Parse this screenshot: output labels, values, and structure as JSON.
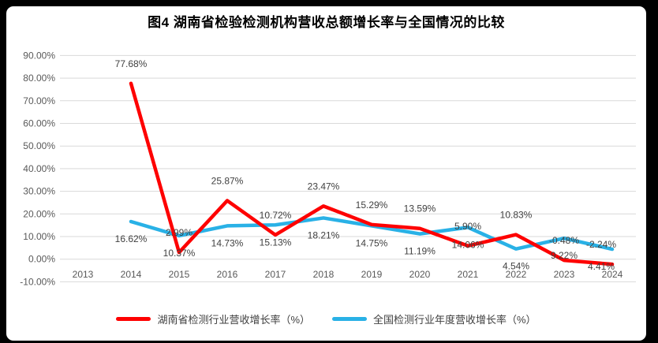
{
  "figure": {
    "title": "图4 湖南省检验检测机构营收总额增长率与全国情况的比较"
  },
  "chart_data": {
    "type": "line",
    "title": "图4 湖南省检验检测机构营收总额增长率与全国情况的比较",
    "categories": [
      "2013",
      "2014",
      "2015",
      "2016",
      "2017",
      "2018",
      "2019",
      "2020",
      "2021",
      "2022",
      "2023",
      "2024"
    ],
    "series": [
      {
        "name": "湖南省检测行业营收增长率（%）",
        "color": "#fe0000",
        "label_position": "above",
        "values": [
          null,
          77.68,
          2.99,
          25.87,
          10.72,
          23.47,
          15.29,
          13.59,
          5.9,
          10.83,
          -0.48,
          -2.24
        ],
        "labels": [
          "",
          "77.68%",
          "2.99%",
          "25.87%",
          "10.72%",
          "23.47%",
          "15.29%",
          "13.59%",
          "5.90%",
          "10.83%",
          "-0.48%",
          "-2.24%"
        ]
      },
      {
        "name": "全国检测行业年度营收增长率（%）",
        "color": "#29b1e6",
        "label_position": "below",
        "values": [
          null,
          16.62,
          10.37,
          14.73,
          15.13,
          18.21,
          14.75,
          11.19,
          14.06,
          4.54,
          9.22,
          4.41
        ],
        "labels": [
          "",
          "16.62%",
          "10.37%",
          "14.73%",
          "15.13%",
          "18.21%",
          "14.75%",
          "11.19%",
          "14.06%",
          "4.54%",
          "9.22%",
          "4.41%"
        ]
      }
    ],
    "y_axis": {
      "min": -10,
      "max": 90,
      "step": 10,
      "tick_labels": [
        "90.00%",
        "80.00%",
        "70.00%",
        "60.00%",
        "50.00%",
        "40.00%",
        "30.00%",
        "20.00%",
        "10.00%",
        "0.00%",
        "-10.00%"
      ]
    },
    "x_axis": {
      "tick_labels": [
        "2013",
        "2014",
        "2015",
        "2016",
        "2017",
        "2018",
        "2019",
        "2020",
        "2021",
        "2022",
        "2023",
        "2024"
      ]
    },
    "grid": true,
    "legend_position": "bottom",
    "colors": {
      "gridline": "#d9d9d9",
      "axis_text": "#595959",
      "data_label_text": "#404040",
      "background": "#ffffff",
      "surround": "#000000"
    }
  }
}
